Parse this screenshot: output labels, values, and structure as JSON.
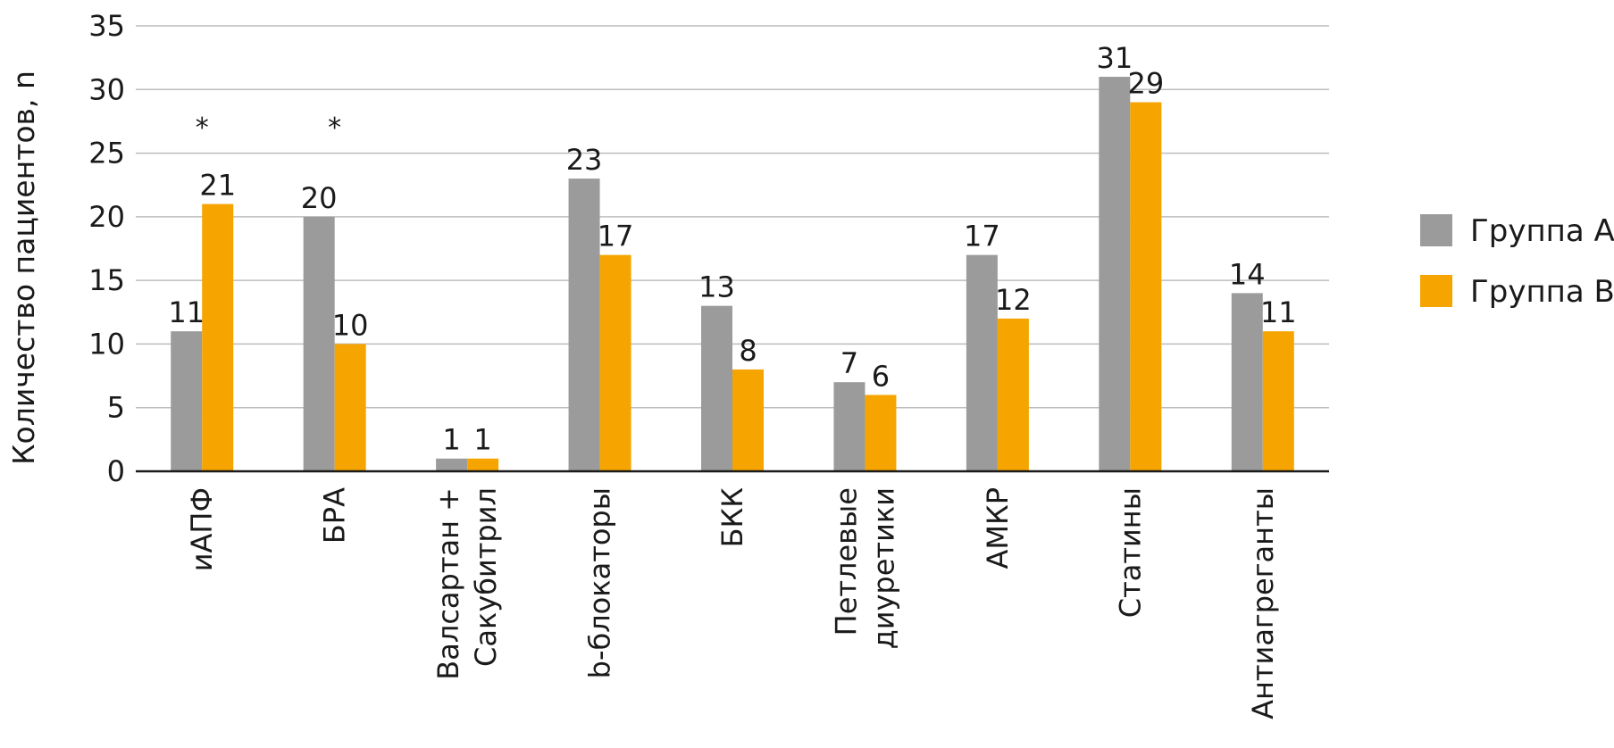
{
  "chart_data": {
    "type": "bar",
    "ylabel": "Количество пациентов, n",
    "xlabel": "",
    "ylim": [
      0,
      35
    ],
    "yticks": [
      "0",
      "5",
      "10",
      "15",
      "20",
      "25",
      "30",
      "35"
    ],
    "grid": true,
    "legend_position": "right",
    "categories": [
      {
        "lines": [
          "иАПФ"
        ]
      },
      {
        "lines": [
          "БРА"
        ]
      },
      {
        "lines": [
          "Валсартан +",
          "Сакубитрил"
        ]
      },
      {
        "lines": [
          "b-блокаторы"
        ]
      },
      {
        "lines": [
          "БКК"
        ]
      },
      {
        "lines": [
          "Петлевые",
          "диуретики"
        ]
      },
      {
        "lines": [
          "АМКР"
        ]
      },
      {
        "lines": [
          "Статины"
        ]
      },
      {
        "lines": [
          "Антиагреганты"
        ]
      }
    ],
    "series": [
      {
        "name": "Группа А",
        "color": "#9b9b9b",
        "values": [
          11,
          20,
          1,
          23,
          13,
          7,
          17,
          31,
          14
        ]
      },
      {
        "name": "Группа В",
        "color": "#f5a400",
        "values": [
          21,
          10,
          1,
          17,
          8,
          6,
          12,
          29,
          11
        ]
      }
    ],
    "annotations": [
      {
        "category_index": 0,
        "text": "*",
        "y": 27
      },
      {
        "category_index": 1,
        "text": "*",
        "y": 27
      }
    ]
  }
}
